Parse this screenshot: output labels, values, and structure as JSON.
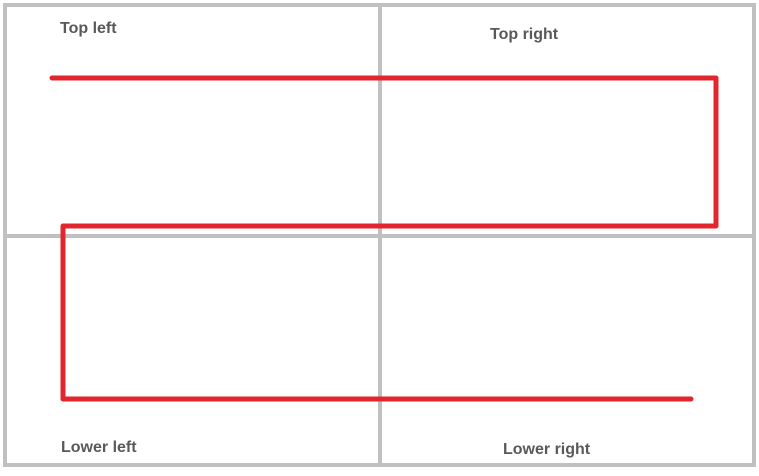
{
  "quadrants": {
    "top_left": "Top left",
    "top_right": "Top right",
    "lower_left": "Lower left",
    "lower_right": "Lower right"
  },
  "colors": {
    "grid": "#c0c0c0",
    "path": "#e3262e",
    "label": "#595959",
    "background": "#ffffff"
  }
}
